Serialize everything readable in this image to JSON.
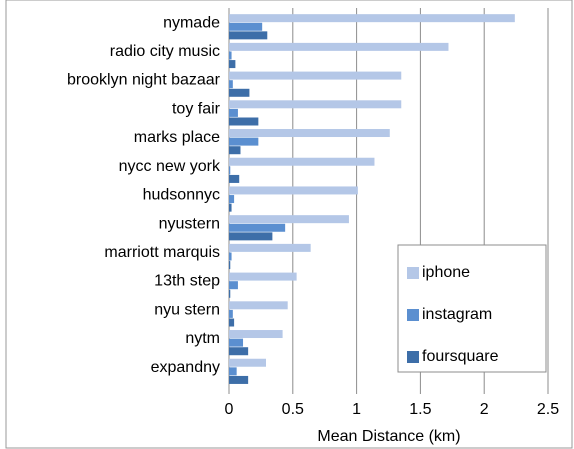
{
  "chart_data": {
    "type": "barh",
    "xlabel": "Mean Distance (km)",
    "categories": [
      "nymade",
      "radio city music",
      "brooklyn night bazaar",
      "toy fair",
      "marks place",
      "nycc new york",
      "hudsonnyc",
      "nyustern",
      "marriott marquis",
      "13th step",
      "nyu stern",
      "nytm",
      "expandny"
    ],
    "series": [
      {
        "name": "iphone",
        "color": "#b4c7e7",
        "values": [
          2.24,
          1.72,
          1.35,
          1.35,
          1.26,
          1.14,
          1.01,
          0.94,
          0.64,
          0.53,
          0.46,
          0.42,
          0.29
        ]
      },
      {
        "name": "instagram",
        "color": "#5b8fd0",
        "values": [
          0.26,
          0.02,
          0.03,
          0.07,
          0.23,
          0.01,
          0.04,
          0.44,
          0.02,
          0.07,
          0.03,
          0.11,
          0.06
        ]
      },
      {
        "name": "foursquare",
        "color": "#3d6ea8",
        "values": [
          0.3,
          0.05,
          0.16,
          0.23,
          0.09,
          0.08,
          0.02,
          0.34,
          0.01,
          0.01,
          0.04,
          0.15,
          0.15
        ]
      }
    ],
    "xlim": [
      0,
      2.5
    ],
    "xticks": [
      0,
      0.5,
      1,
      1.5,
      2,
      2.5
    ],
    "grid": true,
    "legend": "lower right"
  }
}
